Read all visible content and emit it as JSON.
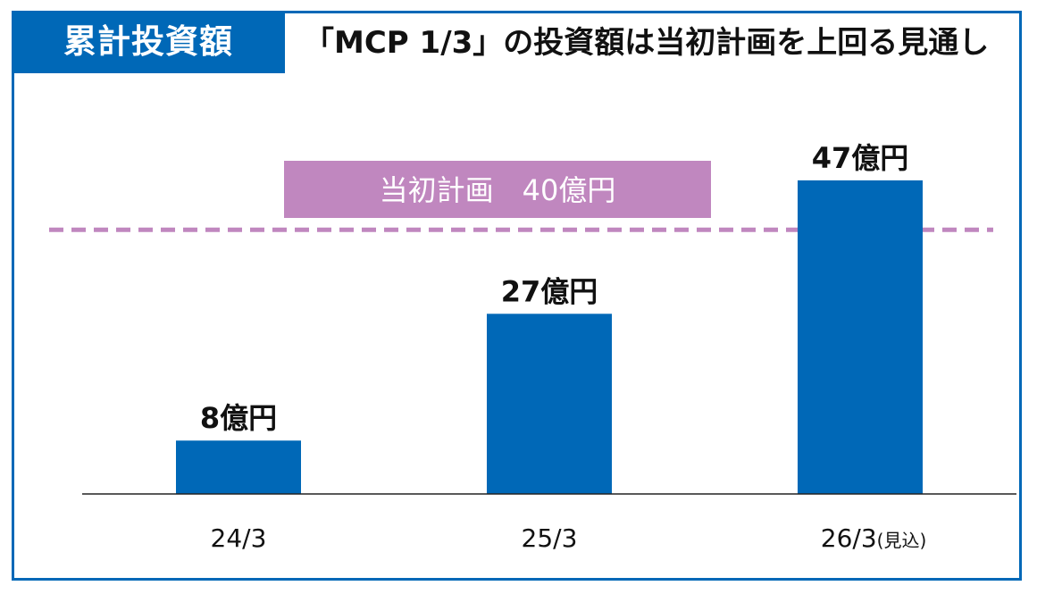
{
  "header": {
    "tag": "累計投資額",
    "headline": "「MCP 1/3」の投資額は当初計画を上回る見通し"
  },
  "colors": {
    "accent": "#0068b7",
    "plan": "#c087bf",
    "axis": "#222222",
    "text": "#111111"
  },
  "chart_data": {
    "type": "bar",
    "categories": [
      "24/3",
      "25/3",
      "26/3"
    ],
    "category_notes": [
      "",
      "",
      "(見込)"
    ],
    "values": [
      8,
      27,
      47
    ],
    "value_labels": [
      "8億円",
      "27億円",
      "47億円"
    ],
    "unit": "億円",
    "reference_line": {
      "value": 40,
      "label": "当初計画　40億円",
      "style": "dashed"
    },
    "grid": false,
    "legend": "none"
  }
}
